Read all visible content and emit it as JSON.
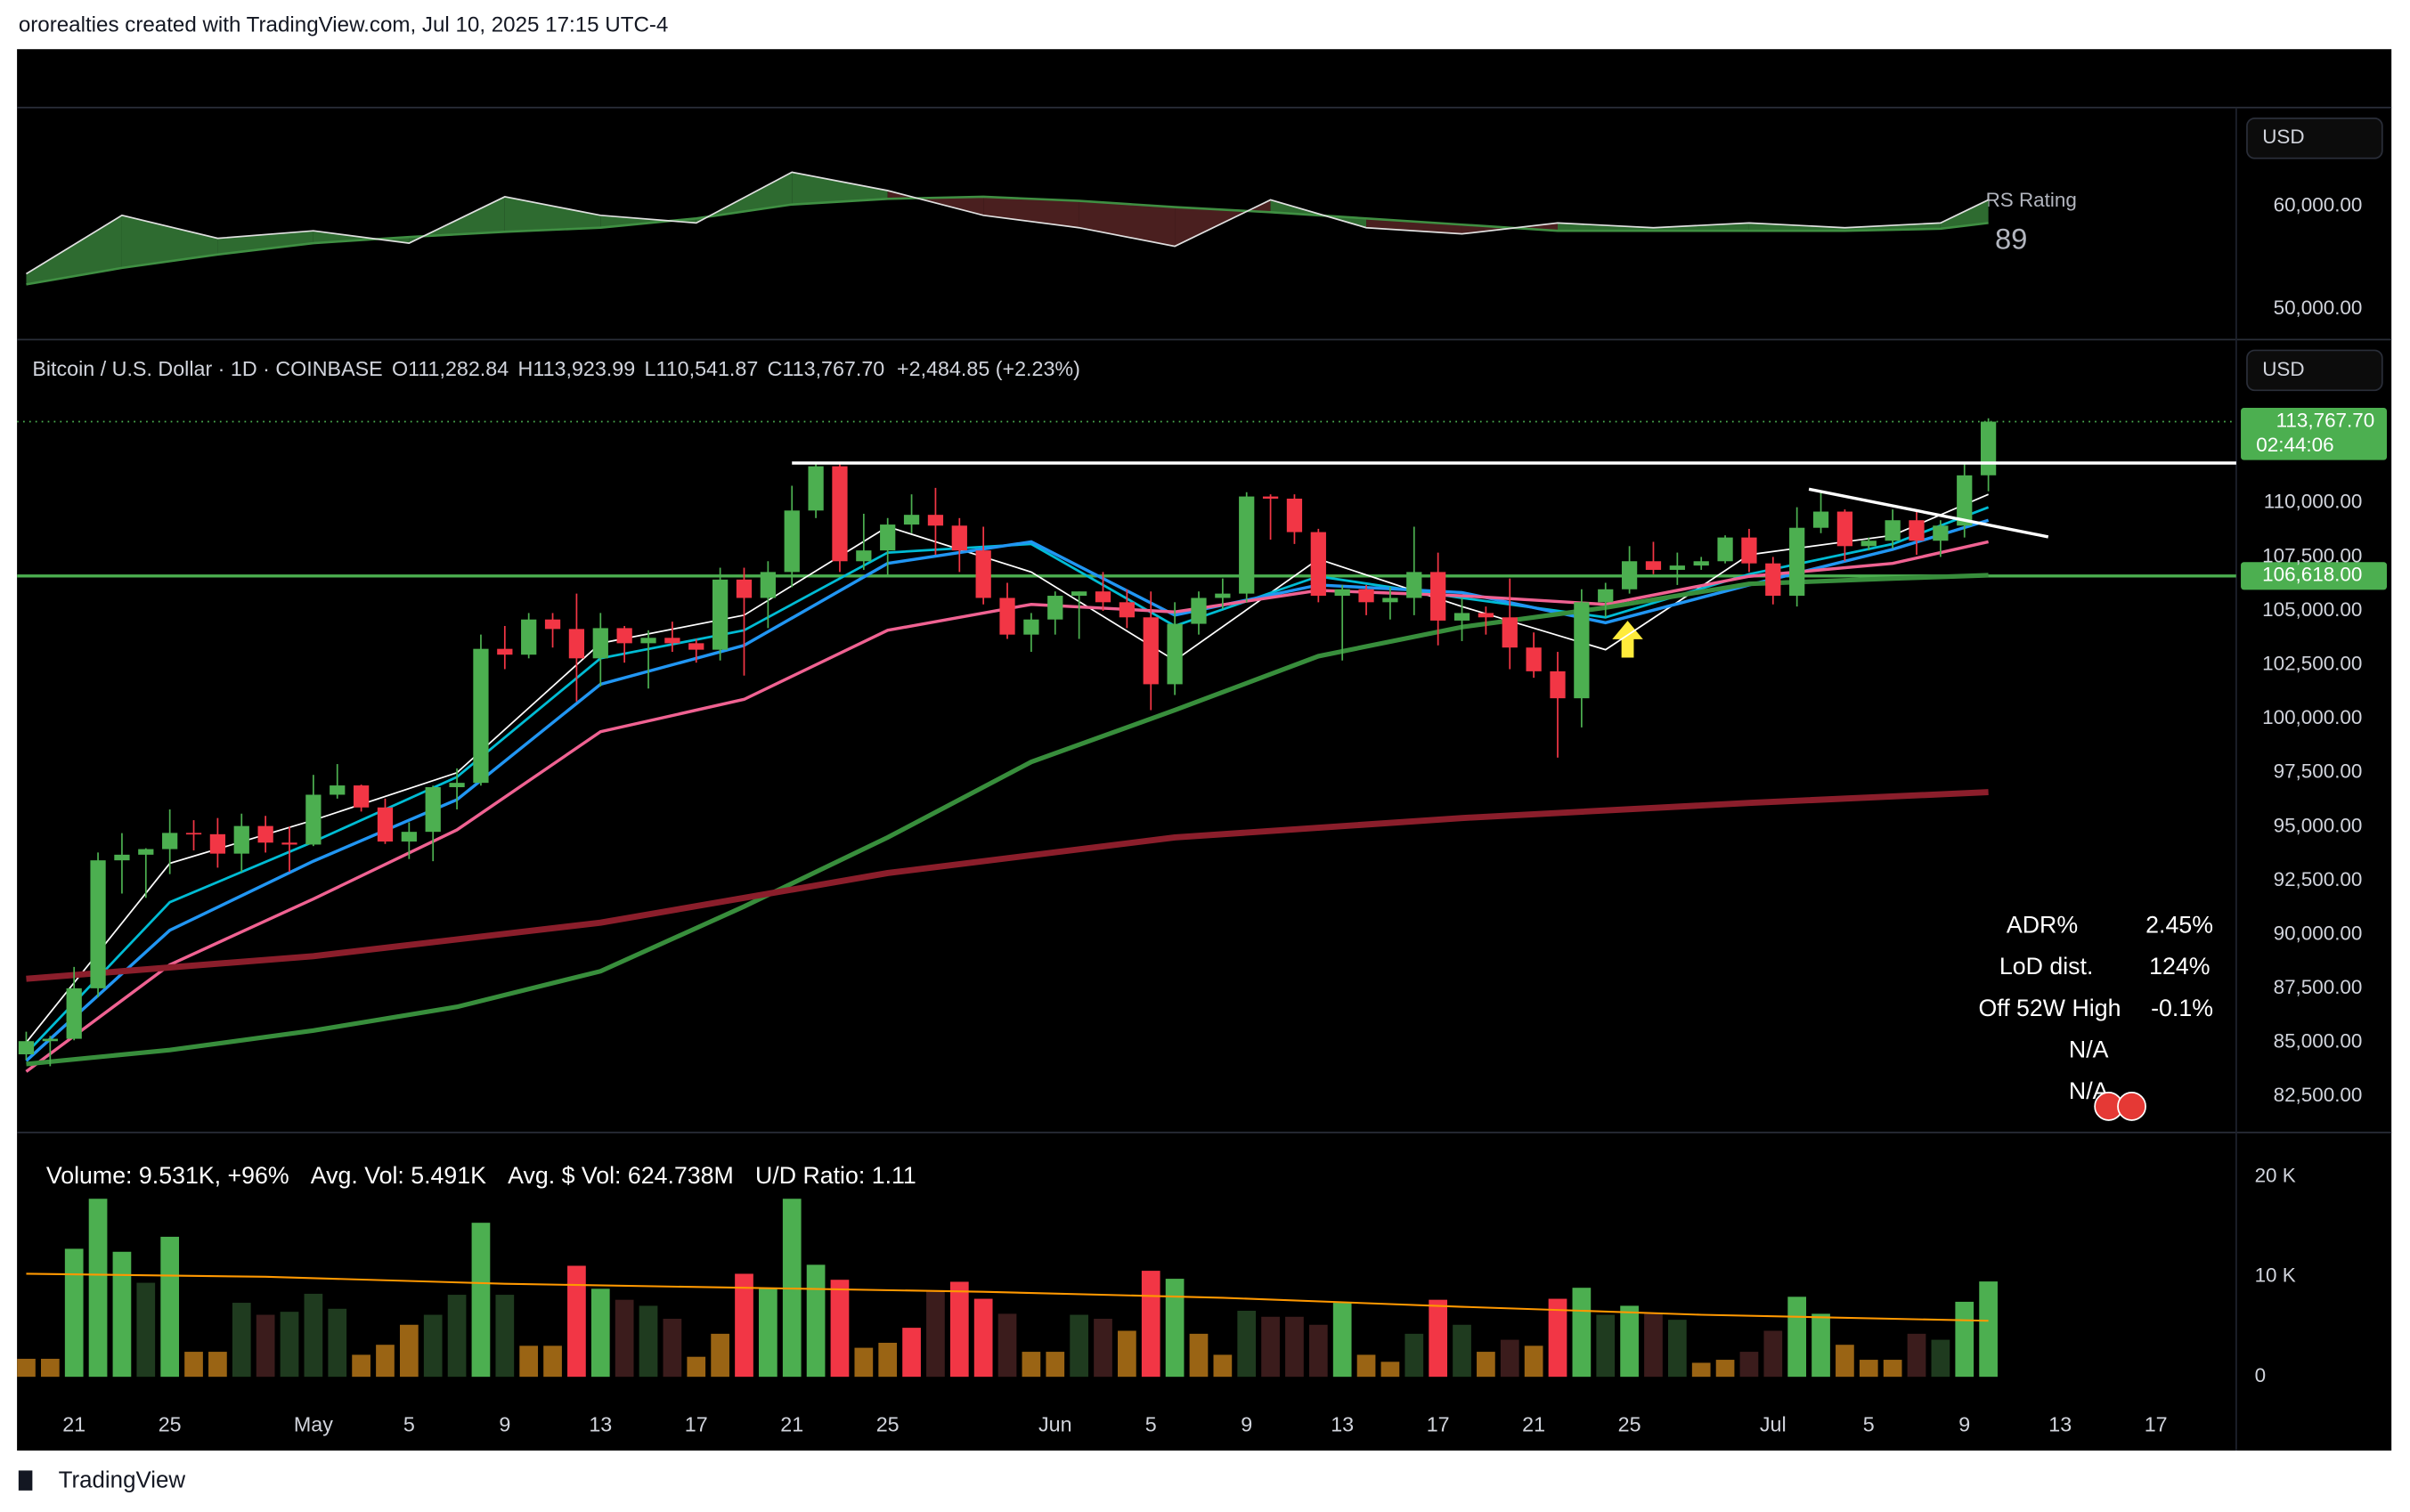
{
  "header": {
    "text": "ororealties created with TradingView.com, Jul 10, 2025 17:15 UTC-4"
  },
  "footer": {
    "brand": "TradingView"
  },
  "stats": {
    "rows": [
      [
        "ADR%",
        "2.45%"
      ],
      [
        "LoD dist.",
        "124%"
      ],
      [
        "Off 52W High",
        "-0.1%"
      ],
      [
        "N/A"
      ],
      [
        "N/A"
      ]
    ]
  },
  "chart_data": [
    {
      "type": "line",
      "annotation_title": "RS Rating",
      "annotation_value": 89,
      "currency": "USD",
      "ylim": [
        47200,
        69400
      ],
      "yticks": [
        {
          "value": 50000,
          "label": "50,000.00"
        },
        {
          "value": 60000,
          "label": "60,000.00"
        }
      ],
      "up_fill": "#2e6b30",
      "down_fill": "#4a1f1f",
      "x": [
        0,
        4,
        8,
        12,
        16,
        20,
        24,
        28,
        32,
        36,
        40,
        44,
        48,
        52,
        56,
        60,
        64,
        68,
        72,
        76,
        80,
        82
      ],
      "series": [
        {
          "color": "#e0e0e0",
          "values": [
            53430,
            59100,
            56870,
            57600,
            56400,
            60900,
            59100,
            58360,
            63280,
            61500,
            59100,
            57900,
            56100,
            60600,
            57900,
            57300,
            58360,
            57900,
            58360,
            57900,
            58360,
            60600
          ]
        },
        {
          "color": "#3f8f42",
          "values": [
            52400,
            54000,
            55300,
            56400,
            57000,
            57500,
            57900,
            58800,
            60150,
            60700,
            60900,
            60500,
            59900,
            59400,
            58800,
            58200,
            57600,
            57600,
            57600,
            57600,
            57800,
            58360
          ]
        }
      ]
    },
    {
      "type": "candlestick",
      "title": "Bitcoin / U.S. Dollar · 1D · COINBASE",
      "currency": "USD",
      "ohlc_legend": [
        {
          "label": "O",
          "value": "111,282.84"
        },
        {
          "label": "H",
          "value": "113,923.99"
        },
        {
          "label": "L",
          "value": "110,541.87"
        },
        {
          "label": "C",
          "value": "113,767.70"
        }
      ],
      "change": "+2,484.85 (+2.23%)",
      "last_price_label": "113,767.70",
      "countdown": "02:44:06",
      "ylim": [
        80900,
        117500
      ],
      "yticks": [
        {
          "value": 82500,
          "label": "82,500.00"
        },
        {
          "value": 85000,
          "label": "85,000.00"
        },
        {
          "value": 87500,
          "label": "87,500.00"
        },
        {
          "value": 90000,
          "label": "90,000.00"
        },
        {
          "value": 92500,
          "label": "92,500.00"
        },
        {
          "value": 95000,
          "label": "95,000.00"
        },
        {
          "value": 97500,
          "label": "97,500.00"
        },
        {
          "value": 100000,
          "label": "100,000.00"
        },
        {
          "value": 102500,
          "label": "102,500.00"
        },
        {
          "value": 105000,
          "label": "105,000.00"
        },
        {
          "value": 107500,
          "label": "107,500.00"
        },
        {
          "value": 110000,
          "label": "110,000.00"
        }
      ],
      "up_color": "#4caf50",
      "down_color": "#f23645",
      "open": [
        84450,
        85060,
        85170,
        87510,
        93440,
        93700,
        93960,
        94710,
        94650,
        93750,
        95030,
        94260,
        94170,
        96480,
        96910,
        95890,
        94310,
        94760,
        96830,
        97030,
        103240,
        102970,
        104600,
        104160,
        102800,
        104200,
        103500,
        103750,
        103500,
        103200,
        106450,
        105600,
        106800,
        109650,
        111700,
        107300,
        107800,
        109000,
        109450,
        108950,
        107800,
        105600,
        103900,
        104600,
        105700,
        105900,
        105400,
        104700,
        101600,
        104400,
        105600,
        105800,
        110300,
        110200,
        108650,
        105700,
        106000,
        105400,
        105600,
        106800,
        104550,
        104900,
        104700,
        103300,
        102200,
        100950,
        105400,
        106000,
        107300,
        106900,
        107100,
        107300,
        108400,
        107200,
        105700,
        108850,
        109600,
        108000,
        108250,
        109200,
        108250,
        108950,
        111282.84,
        null,
        null,
        null,
        null,
        null,
        null,
        null
      ],
      "high": [
        85500,
        85300,
        88500,
        93800,
        94700,
        94000,
        95800,
        95300,
        95400,
        95600,
        95500,
        95000,
        97400,
        97900,
        96950,
        96300,
        95200,
        96900,
        97700,
        103900,
        104300,
        104900,
        104900,
        105800,
        104900,
        104300,
        104100,
        104500,
        103700,
        107000,
        107000,
        107300,
        110800,
        111900,
        111800,
        109500,
        109300,
        110400,
        110700,
        109300,
        108900,
        106300,
        104900,
        105900,
        105900,
        106800,
        106000,
        105900,
        105400,
        105900,
        106500,
        110500,
        110400,
        110400,
        108800,
        106200,
        106200,
        106100,
        108900,
        107700,
        105600,
        105200,
        106500,
        104000,
        103100,
        106000,
        106300,
        108000,
        108200,
        107700,
        107500,
        108500,
        108800,
        107500,
        109800,
        110500,
        109700,
        108400,
        109700,
        109700,
        109200,
        111900,
        113923.99,
        null,
        null,
        null,
        null,
        null,
        null,
        null
      ],
      "low": [
        84200,
        83900,
        85100,
        87100,
        91900,
        91700,
        92800,
        93900,
        93100,
        92900,
        93800,
        92900,
        94100,
        96300,
        95700,
        94200,
        93500,
        93400,
        95800,
        96900,
        102300,
        102800,
        103300,
        100800,
        101500,
        102600,
        101400,
        103100,
        102600,
        102700,
        102000,
        104200,
        106100,
        109300,
        106800,
        106900,
        106600,
        108600,
        107600,
        106800,
        105300,
        103700,
        103100,
        103900,
        103700,
        105000,
        104200,
        100400,
        101100,
        103900,
        105100,
        105400,
        108300,
        108100,
        105400,
        102700,
        104800,
        104600,
        104800,
        103400,
        103600,
        103900,
        102300,
        101900,
        98200,
        99600,
        104700,
        105800,
        106700,
        106200,
        106900,
        107200,
        106800,
        105300,
        105200,
        108600,
        107300,
        107800,
        107900,
        107600,
        107500,
        108400,
        110541.87,
        null,
        null,
        null,
        null,
        null,
        null,
        null
      ],
      "close": [
        85060,
        85170,
        87510,
        93440,
        93700,
        93960,
        94710,
        94650,
        93750,
        95030,
        94260,
        94170,
        96480,
        96910,
        95890,
        94310,
        94760,
        96830,
        97030,
        103240,
        102970,
        104600,
        104160,
        102800,
        104200,
        103500,
        103750,
        103500,
        103200,
        106450,
        105600,
        106800,
        109650,
        111700,
        107300,
        107800,
        109000,
        109450,
        108950,
        107800,
        105600,
        103900,
        104600,
        105700,
        105900,
        105400,
        104700,
        101600,
        104400,
        105600,
        105800,
        110300,
        110200,
        108650,
        105700,
        106000,
        105400,
        105600,
        106800,
        104550,
        104900,
        104700,
        103300,
        102200,
        100950,
        105400,
        106000,
        107300,
        106900,
        107100,
        107300,
        108400,
        107200,
        105700,
        108850,
        109600,
        108000,
        108250,
        109200,
        108250,
        108950,
        111280,
        113767.7,
        null,
        null,
        null,
        null,
        null,
        null,
        null
      ],
      "moving_averages": [
        {
          "color": "#ffffff",
          "width": 1,
          "x": [
            0,
            6,
            12,
            18,
            24,
            30,
            36,
            42,
            48,
            54,
            60,
            66,
            72,
            78,
            82
          ],
          "values": [
            85000,
            93300,
            95300,
            97500,
            103500,
            104800,
            108900,
            106800,
            102700,
            107400,
            105200,
            103200,
            107600,
            108500,
            110400
          ]
        },
        {
          "color": "#00bcd4",
          "width": 1.6,
          "x": [
            0,
            6,
            12,
            18,
            24,
            30,
            36,
            42,
            48,
            54,
            60,
            66,
            72,
            78,
            82
          ],
          "values": [
            84500,
            91500,
            94300,
            97300,
            102800,
            104100,
            107700,
            108100,
            104300,
            106600,
            105600,
            104700,
            106700,
            108100,
            109800
          ]
        },
        {
          "color": "#2196f3",
          "width": 2,
          "x": [
            0,
            6,
            12,
            18,
            24,
            30,
            36,
            42,
            48,
            54,
            60,
            66,
            72,
            78,
            82
          ],
          "values": [
            84150,
            90200,
            93400,
            96250,
            101600,
            103400,
            107200,
            108200,
            104800,
            106200,
            105850,
            104450,
            106200,
            107850,
            109200
          ]
        },
        {
          "color": "#f06292",
          "width": 2,
          "x": [
            0,
            6,
            12,
            18,
            24,
            30,
            36,
            42,
            48,
            54,
            60,
            66,
            72,
            78,
            82
          ],
          "values": [
            83650,
            88600,
            91650,
            94850,
            99400,
            100900,
            104100,
            105300,
            104950,
            105950,
            105700,
            105300,
            106600,
            107200,
            108200
          ]
        },
        {
          "color": "#388e3c",
          "width": 3,
          "x": [
            0,
            6,
            12,
            18,
            24,
            30,
            36,
            42,
            48,
            54,
            60,
            66,
            72,
            78,
            82
          ],
          "values": [
            84000,
            84650,
            85550,
            86650,
            88300,
            91300,
            94500,
            98000,
            100400,
            102900,
            104250,
            105150,
            106250,
            106500,
            106650
          ]
        },
        {
          "color": "#8b1e2b",
          "width": 4,
          "x": [
            0,
            12,
            24,
            36,
            48,
            60,
            72,
            82
          ],
          "values": [
            87950,
            89000,
            90550,
            92850,
            94500,
            95400,
            96100,
            96600
          ]
        }
      ],
      "levels": [
        {
          "value": 106618,
          "label": "106,618.00",
          "color": "#4caf50"
        }
      ],
      "trendlines": [
        {
          "color": "#ffffff",
          "x": [
            32,
            93
          ],
          "values": [
            111850,
            111850
          ]
        },
        {
          "color": "#ffffff",
          "x": [
            74.5,
            84.5
          ],
          "values": [
            110640,
            108430
          ]
        }
      ]
    },
    {
      "type": "bar",
      "legend": [
        "Volume: 9.531K, +96%",
        "Avg. Vol: 5.491K",
        "Avg. $ Vol: 624.738M",
        "U/D Ratio: 1.11"
      ],
      "categories": [
        null,
        null,
        "21",
        null,
        null,
        null,
        "25",
        null,
        null,
        null,
        null,
        null,
        "May",
        null,
        null,
        null,
        "5",
        null,
        null,
        null,
        "9",
        null,
        null,
        null,
        "13",
        null,
        null,
        null,
        "17",
        null,
        null,
        null,
        "21",
        null,
        null,
        null,
        "25",
        null,
        null,
        null,
        null,
        null,
        null,
        "Jun",
        null,
        null,
        null,
        "5",
        null,
        null,
        null,
        "9",
        null,
        null,
        null,
        "13",
        null,
        null,
        null,
        "17",
        null,
        null,
        null,
        "21",
        null,
        null,
        null,
        "25",
        null,
        null,
        null,
        null,
        null,
        "Jul",
        null,
        null,
        null,
        "5",
        null,
        null,
        null,
        "9",
        null,
        null,
        null,
        "13",
        null,
        null,
        null,
        "17"
      ],
      "values": [
        1800,
        1800,
        12800,
        17800,
        12500,
        9400,
        14000,
        2500,
        2500,
        7400,
        6200,
        6500,
        8300,
        6800,
        2200,
        3200,
        5200,
        6200,
        8200,
        15400,
        8200,
        3100,
        3100,
        11100,
        8800,
        7700,
        7100,
        5800,
        2000,
        4300,
        10300,
        8900,
        17800,
        11200,
        9700,
        2900,
        3400,
        4900,
        8600,
        9500,
        7800,
        6300,
        2500,
        2500,
        6200,
        5800,
        4600,
        10600,
        9800,
        4300,
        2200,
        6600,
        6000,
        6000,
        5200,
        7400,
        2200,
        1500,
        4300,
        7700,
        5200,
        2500,
        3700,
        3100,
        7800,
        8900,
        6200,
        7100,
        6300,
        5700,
        1400,
        1700,
        2500,
        4600,
        8000,
        6300,
        3200,
        1700,
        1700,
        4300,
        3700,
        7500,
        9531,
        null,
        null,
        null,
        null,
        null,
        null,
        null
      ],
      "colors": [
        "#9a6414",
        "#9a6414",
        "#4caf50",
        "#4caf50",
        "#4caf50",
        "#1f3b1f",
        "#4caf50",
        "#9a6414",
        "#9a6414",
        "#1f3b1f",
        "#3b1c1c",
        "#1f3b1f",
        "#1f3b1f",
        "#1f3b1f",
        "#9a6414",
        "#9a6414",
        "#9a6414",
        "#1f3b1f",
        "#1f3b1f",
        "#4caf50",
        "#1f3b1f",
        "#9a6414",
        "#9a6414",
        "#f23645",
        "#4caf50",
        "#3b1c1c",
        "#1f3b1f",
        "#3b1c1c",
        "#9a6414",
        "#9a6414",
        "#f23645",
        "#4caf50",
        "#4caf50",
        "#4caf50",
        "#f23645",
        "#9a6414",
        "#9a6414",
        "#f23645",
        "#3b1c1c",
        "#f23645",
        "#f23645",
        "#3b1c1c",
        "#9a6414",
        "#9a6414",
        "#1f3b1f",
        "#3b1c1c",
        "#9a6414",
        "#f23645",
        "#4caf50",
        "#9a6414",
        "#9a6414",
        "#1f3b1f",
        "#3b1c1c",
        "#3b1c1c",
        "#3b1c1c",
        "#4caf50",
        "#9a6414",
        "#9a6414",
        "#1f3b1f",
        "#f23645",
        "#1f3b1f",
        "#9a6414",
        "#3b1c1c",
        "#9a6414",
        "#f23645",
        "#4caf50",
        "#1f3b1f",
        "#4caf50",
        "#3b1c1c",
        "#1f3b1f",
        "#9a6414",
        "#9a6414",
        "#3b1c1c",
        "#3b1c1c",
        "#4caf50",
        "#4caf50",
        "#9a6414",
        "#9a6414",
        "#9a6414",
        "#3b1c1c",
        "#1f3b1f",
        "#4caf50",
        "#4caf50",
        null,
        null,
        null,
        null,
        null,
        null,
        null
      ],
      "avg_line": {
        "color": "#ff9800",
        "x": [
          0,
          10,
          20,
          30,
          40,
          50,
          60,
          70,
          82
        ],
        "values": [
          10300,
          10000,
          9300,
          8900,
          8500,
          7900,
          7000,
          6200,
          5600
        ]
      },
      "ylim": [
        -2150,
        23200
      ],
      "yticks": [
        {
          "value": 0,
          "label": "0"
        },
        {
          "value": 10000,
          "label": "10 K"
        },
        {
          "value": 20000,
          "label": "20 K"
        }
      ]
    }
  ]
}
